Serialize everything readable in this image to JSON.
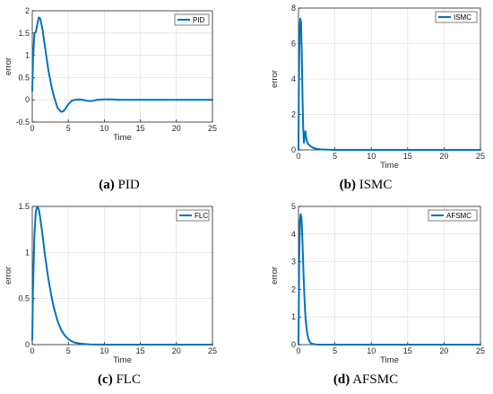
{
  "chart_data": [
    {
      "type": "line",
      "caption_letter": "(a)",
      "caption_text": "PID",
      "xlabel": "Time",
      "ylabel": "error",
      "xlim": [
        0,
        25
      ],
      "ylim": [
        -0.5,
        2
      ],
      "xticks": [
        "0",
        "5",
        "10",
        "15",
        "20",
        "25"
      ],
      "yticks": [
        "-0.5",
        "0",
        "0.5",
        "1",
        "1.5",
        "2"
      ],
      "grid": true,
      "legend": "top-right",
      "series": [
        {
          "name": "PID",
          "color": "#0072BD",
          "x": [
            0,
            0.1,
            0.3,
            0.5,
            0.7,
            0.9,
            1.1,
            1.4,
            1.8,
            2.2,
            2.6,
            3.0,
            3.5,
            4.0,
            4.3,
            4.6,
            5.0,
            5.5,
            6.0,
            6.5,
            7.0,
            7.5,
            8.0,
            8.5,
            9.0,
            10.0,
            11.0,
            12.0,
            13.0,
            14.0,
            15.0,
            17.0,
            20.0,
            25.0
          ],
          "y": [
            0.2,
            0.9,
            1.5,
            1.52,
            1.7,
            1.85,
            1.83,
            1.6,
            1.15,
            0.7,
            0.35,
            0.08,
            -0.18,
            -0.27,
            -0.26,
            -0.2,
            -0.1,
            -0.02,
            0.0,
            0.01,
            0.0,
            -0.02,
            -0.03,
            -0.02,
            0.0,
            0.01,
            0.01,
            0.0,
            0.0,
            0.0,
            0.0,
            0.0,
            0.0,
            0.0
          ]
        }
      ]
    },
    {
      "type": "line",
      "caption_letter": "(b)",
      "caption_text": "ISMC",
      "xlabel": "Time",
      "ylabel": "error",
      "xlim": [
        0,
        25
      ],
      "ylim": [
        0,
        8
      ],
      "xticks": [
        "0",
        "5",
        "10",
        "15",
        "20",
        "25"
      ],
      "yticks": [
        "0",
        "2",
        "4",
        "6",
        "8"
      ],
      "grid": true,
      "legend": "top-right",
      "series": [
        {
          "name": "ISMC",
          "color": "#0072BD",
          "x": [
            0,
            0.05,
            0.15,
            0.25,
            0.35,
            0.45,
            0.55,
            0.65,
            0.75,
            0.85,
            0.95,
            1.1,
            1.3,
            1.6,
            2.0,
            2.5,
            3.0,
            4.0,
            5.0,
            7.0,
            25.0
          ],
          "y": [
            0,
            3.5,
            6.8,
            7.4,
            7.2,
            5.5,
            3.0,
            1.2,
            0.4,
            0.9,
            1.05,
            0.55,
            0.35,
            0.22,
            0.12,
            0.06,
            0.03,
            0.01,
            0.0,
            0.0,
            0.0
          ]
        }
      ]
    },
    {
      "type": "line",
      "caption_letter": "(c)",
      "caption_text": "FLC",
      "xlabel": "Time",
      "ylabel": "error",
      "xlim": [
        0,
        25
      ],
      "ylim": [
        0,
        1.5
      ],
      "xticks": [
        "0",
        "5",
        "10",
        "15",
        "20",
        "25"
      ],
      "yticks": [
        "0",
        "0.5",
        "1",
        "1.5"
      ],
      "grid": true,
      "legend": "top-right",
      "series": [
        {
          "name": "FLC",
          "color": "#0072BD",
          "x": [
            0,
            0.1,
            0.3,
            0.5,
            0.7,
            0.9,
            1.1,
            1.4,
            1.8,
            2.2,
            2.6,
            3.0,
            3.5,
            4.0,
            4.5,
            5.0,
            5.5,
            6.0,
            7.0,
            8.0,
            10.0,
            12.0,
            15.0,
            25.0
          ],
          "y": [
            0.05,
            0.6,
            1.2,
            1.45,
            1.5,
            1.47,
            1.38,
            1.2,
            0.95,
            0.73,
            0.55,
            0.4,
            0.26,
            0.16,
            0.1,
            0.06,
            0.035,
            0.02,
            0.008,
            0.003,
            0.0,
            0.0,
            0.0,
            0.0
          ]
        }
      ]
    },
    {
      "type": "line",
      "caption_letter": "(d)",
      "caption_text": "AFSMC",
      "xlabel": "Time",
      "ylabel": "error",
      "xlim": [
        0,
        25
      ],
      "ylim": [
        0,
        5
      ],
      "xticks": [
        "0",
        "5",
        "10",
        "15",
        "20",
        "25"
      ],
      "yticks": [
        "0",
        "1",
        "2",
        "3",
        "4",
        "5"
      ],
      "grid": true,
      "legend": "top-right",
      "series": [
        {
          "name": "AFSMC",
          "color": "#0072BD",
          "x": [
            0,
            0.05,
            0.1,
            0.2,
            0.3,
            0.4,
            0.5,
            0.6,
            0.7,
            0.8,
            0.9,
            1.0,
            1.2,
            1.4,
            1.6,
            1.8,
            2.0,
            2.5,
            3.0,
            25.0
          ],
          "y": [
            0,
            1.5,
            3.2,
            4.5,
            4.72,
            4.6,
            4.1,
            3.3,
            2.5,
            1.8,
            1.25,
            0.85,
            0.4,
            0.18,
            0.08,
            0.04,
            0.02,
            0.005,
            0.0,
            0.0
          ]
        }
      ]
    }
  ]
}
